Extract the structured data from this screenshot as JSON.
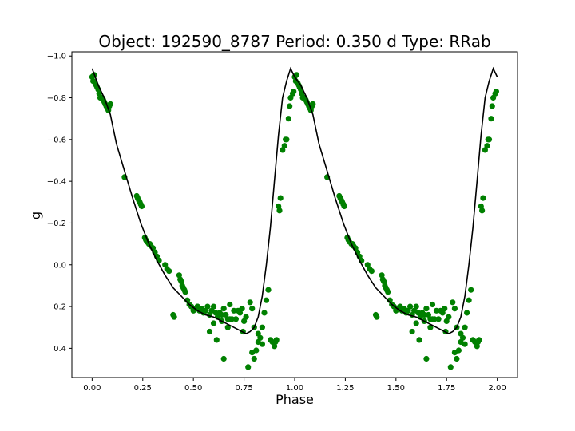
{
  "chart_data": {
    "type": "scatter",
    "title": "Object: 192590_8787    Period: 0.350 d    Type: RRab",
    "xlabel": "Phase",
    "ylabel": "g",
    "xlim": [
      -0.1,
      2.1
    ],
    "ylim": [
      0.54,
      -1.02
    ],
    "y_inverted": true,
    "grid": false,
    "legend": "none",
    "x_ticks": [
      0.0,
      0.25,
      0.5,
      0.75,
      1.0,
      1.25,
      1.5,
      1.75,
      2.0
    ],
    "x_tick_labels": [
      "0.00",
      "0.25",
      "0.50",
      "0.75",
      "1.00",
      "1.25",
      "1.50",
      "1.75",
      "2.00"
    ],
    "y_ticks": [
      -1.0,
      -0.8,
      -0.6,
      -0.4,
      -0.2,
      0.0,
      0.2,
      0.4
    ],
    "y_tick_labels": [
      "−1.0",
      "−0.8",
      "−0.6",
      "−0.4",
      "−0.2",
      "0.0",
      "0.2",
      "0.4"
    ],
    "series": [
      {
        "kind": "scatter",
        "color": "#008000",
        "x": [
          0.0,
          0.005,
          0.01,
          0.015,
          0.02,
          0.025,
          0.03,
          0.035,
          0.04,
          0.05,
          0.055,
          0.06,
          0.065,
          0.07,
          0.075,
          0.08,
          0.085,
          0.09,
          0.16,
          0.22,
          0.225,
          0.23,
          0.235,
          0.24,
          0.245,
          0.26,
          0.265,
          0.27,
          0.28,
          0.285,
          0.29,
          0.3,
          0.31,
          0.32,
          0.33,
          0.36,
          0.37,
          0.38,
          0.4,
          0.405,
          0.43,
          0.435,
          0.44,
          0.445,
          0.45,
          0.455,
          0.46,
          0.47,
          0.48,
          0.49,
          0.5,
          0.51,
          0.52,
          0.53,
          0.54,
          0.55,
          0.56,
          0.57,
          0.58,
          0.59,
          0.6,
          0.61,
          0.62,
          0.63,
          0.64,
          0.65,
          0.66,
          0.67,
          0.68,
          0.69,
          0.7,
          0.72,
          0.73,
          0.74,
          0.75,
          0.76,
          0.78,
          0.79,
          0.8,
          0.81,
          0.82,
          0.83,
          0.84,
          0.85,
          0.86,
          0.87,
          0.88,
          0.89,
          0.9,
          0.905,
          0.91,
          0.92,
          0.925,
          0.93,
          0.94,
          0.95,
          0.955,
          0.96,
          0.97,
          0.975,
          0.98,
          0.99,
          0.995,
          0.52,
          0.58,
          0.615,
          0.65,
          0.67,
          0.745,
          0.79,
          0.8,
          0.82,
          0.84,
          0.71,
          0.77,
          0.6,
          0.64,
          0.68
        ],
        "y": [
          -0.9,
          -0.88,
          -0.91,
          -0.87,
          -0.86,
          -0.85,
          -0.84,
          -0.82,
          -0.8,
          -0.8,
          -0.79,
          -0.78,
          -0.77,
          -0.76,
          -0.75,
          -0.74,
          -0.76,
          -0.77,
          -0.42,
          -0.33,
          -0.32,
          -0.31,
          -0.3,
          -0.29,
          -0.28,
          -0.13,
          -0.12,
          -0.11,
          -0.1,
          -0.1,
          -0.09,
          -0.08,
          -0.06,
          -0.04,
          -0.02,
          0.0,
          0.02,
          0.03,
          0.24,
          0.25,
          0.05,
          0.07,
          0.08,
          0.1,
          0.11,
          0.12,
          0.13,
          0.17,
          0.19,
          0.2,
          0.22,
          0.21,
          0.2,
          0.22,
          0.21,
          0.23,
          0.22,
          0.2,
          0.24,
          0.22,
          0.2,
          0.23,
          0.25,
          0.23,
          0.27,
          0.21,
          0.24,
          0.26,
          0.19,
          0.26,
          0.22,
          0.22,
          0.23,
          0.21,
          0.27,
          0.25,
          0.18,
          0.21,
          0.3,
          0.41,
          0.33,
          0.35,
          0.3,
          0.23,
          0.17,
          0.12,
          0.36,
          0.37,
          0.39,
          0.37,
          0.36,
          -0.28,
          -0.26,
          -0.32,
          -0.55,
          -0.57,
          -0.6,
          -0.6,
          -0.7,
          -0.76,
          -0.8,
          -0.82,
          -0.83,
          0.2,
          0.32,
          0.36,
          0.45,
          0.3,
          0.32,
          0.42,
          0.45,
          0.37,
          0.38,
          0.26,
          0.49,
          0.28,
          0.24,
          0.26
        ]
      },
      {
        "kind": "line",
        "color": "#000000",
        "x": [
          0.0,
          0.03,
          0.06,
          0.09,
          0.12,
          0.16,
          0.2,
          0.24,
          0.28,
          0.32,
          0.36,
          0.4,
          0.44,
          0.48,
          0.52,
          0.56,
          0.6,
          0.64,
          0.68,
          0.72,
          0.76,
          0.78,
          0.8,
          0.82,
          0.84,
          0.86,
          0.88,
          0.9,
          0.92,
          0.94,
          0.96,
          0.98,
          1.0
        ],
        "y": [
          -0.94,
          -0.86,
          -0.8,
          -0.72,
          -0.58,
          -0.45,
          -0.32,
          -0.2,
          -0.1,
          -0.02,
          0.05,
          0.11,
          0.15,
          0.19,
          0.22,
          0.24,
          0.25,
          0.27,
          0.29,
          0.31,
          0.33,
          0.32,
          0.3,
          0.25,
          0.15,
          0.0,
          -0.18,
          -0.4,
          -0.62,
          -0.8,
          -0.88,
          -0.94,
          -0.9
        ]
      }
    ]
  }
}
